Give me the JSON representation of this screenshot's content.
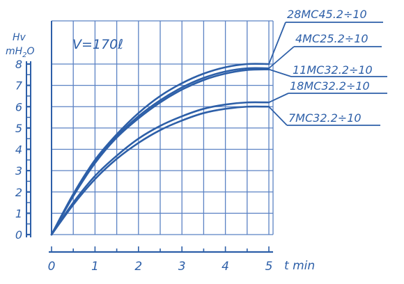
{
  "chart_data": {
    "type": "line",
    "title": "",
    "annotation": "V=170ℓ",
    "ylabel": "Hv",
    "yunit_prefix": "mH",
    "yunit_sub": "2",
    "yunit_suffix": "O",
    "xlabel": "t min",
    "xlim": [
      0,
      5
    ],
    "ylim": [
      0,
      8
    ],
    "xticks": [
      "0",
      "1",
      "2",
      "3",
      "4",
      "5"
    ],
    "yticks": [
      "0",
      "1",
      "2",
      "3",
      "4",
      "5",
      "6",
      "7",
      "8"
    ],
    "grid": true,
    "ink_color": "#2d5fa8",
    "grid_color": "#5b82c4",
    "background": "#ffffff",
    "series": [
      {
        "name": "28MC45.2÷10",
        "x": [
          0,
          0.5,
          1,
          1.5,
          2,
          2.5,
          3,
          3.5,
          4,
          4.5,
          5
        ],
        "y": [
          0,
          1.9,
          3.5,
          4.7,
          5.7,
          6.5,
          7.1,
          7.55,
          7.85,
          8.0,
          8.0
        ]
      },
      {
        "name": "4MC25.2÷10",
        "x": [
          0,
          0.5,
          1,
          1.5,
          2,
          2.5,
          3,
          3.5,
          4,
          4.5,
          5
        ],
        "y": [
          0,
          1.85,
          3.4,
          4.6,
          5.55,
          6.3,
          6.9,
          7.35,
          7.65,
          7.8,
          7.8
        ]
      },
      {
        "name": "11MC32.2÷10",
        "x": [
          0,
          0.5,
          1,
          1.5,
          2,
          2.5,
          3,
          3.5,
          4,
          4.5,
          5
        ],
        "y": [
          0,
          1.8,
          3.35,
          4.55,
          5.45,
          6.2,
          6.8,
          7.25,
          7.55,
          7.72,
          7.75
        ]
      },
      {
        "name": "18MC32.2÷10",
        "x": [
          0,
          0.5,
          1,
          1.5,
          2,
          2.5,
          3,
          3.5,
          4,
          4.5,
          5
        ],
        "y": [
          0,
          1.5,
          2.75,
          3.7,
          4.5,
          5.1,
          5.55,
          5.9,
          6.1,
          6.2,
          6.2
        ]
      },
      {
        "name": "7MC32.2÷10",
        "x": [
          0,
          0.5,
          1,
          1.5,
          2,
          2.5,
          3,
          3.5,
          4,
          4.5,
          5
        ],
        "y": [
          0,
          1.4,
          2.6,
          3.55,
          4.3,
          4.9,
          5.35,
          5.7,
          5.9,
          6.0,
          6.0
        ]
      }
    ]
  }
}
